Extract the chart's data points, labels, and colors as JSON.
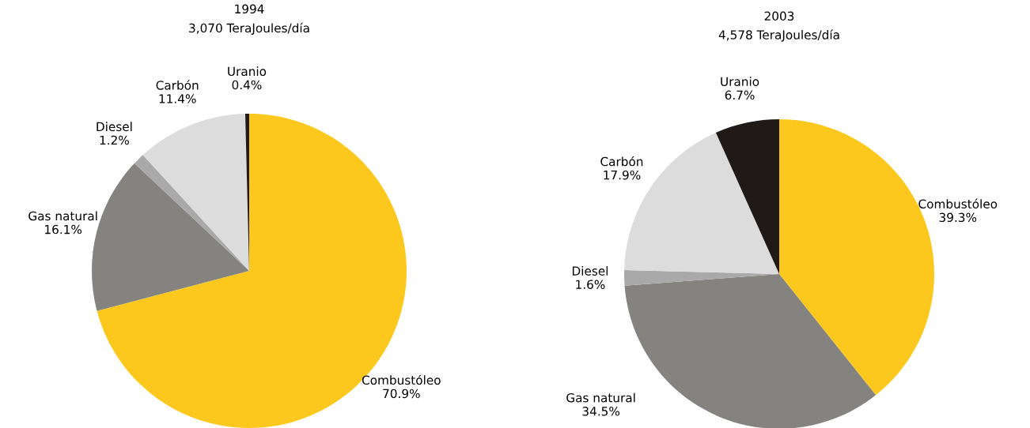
{
  "chart_data": [
    {
      "type": "pie",
      "title": "1994",
      "subtitle": "3,070 TeraJoules/día",
      "categories": [
        "Combustóleo",
        "Gas natural",
        "Diesel",
        "Carbón",
        "Uranio"
      ],
      "values": [
        70.9,
        16.1,
        1.2,
        11.4,
        0.4
      ],
      "value_labels": [
        "70.9%",
        "16.1%",
        "1.2%",
        "11.4%",
        "0.4%"
      ],
      "colors": [
        "#fdc81e",
        "#858380",
        "#a9a9a9",
        "#dcdcdc",
        "#1f1a17"
      ]
    },
    {
      "type": "pie",
      "title": "2003",
      "subtitle": "4,578 TeraJoules/día",
      "categories": [
        "Combustóleo",
        "Gas natural",
        "Diesel",
        "Carbón",
        "Uranio"
      ],
      "values": [
        39.3,
        34.5,
        1.6,
        17.9,
        6.7
      ],
      "value_labels": [
        "39.3%",
        "34.5%",
        "1.6%",
        "17.9%",
        "6.7%"
      ],
      "colors": [
        "#fdc81e",
        "#858380",
        "#a9a9a9",
        "#dcdcdc",
        "#1f1a17"
      ]
    }
  ]
}
